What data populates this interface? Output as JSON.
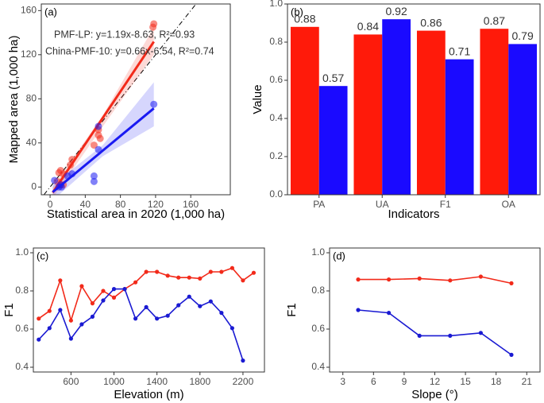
{
  "chart_data": [
    {
      "type": "scatter",
      "panel_label": "(a)",
      "x_label": "Statistical area in 2020 (1,000 ha)",
      "y_label": "Mapped area (1,000 ha)",
      "xlim": [
        -10,
        205
      ],
      "ylim": [
        -7,
        166
      ],
      "xticks": [
        0,
        40,
        80,
        120,
        160
      ],
      "yticks": [
        0,
        40,
        80,
        120,
        160
      ],
      "series": [
        {
          "name": "PMF-LP: y=1.19x-8.63, R²=0.93",
          "color": "#f22a1a",
          "x": [
            118,
            117,
            55,
            55,
            57,
            50,
            25,
            23,
            12,
            10,
            15,
            8,
            15,
            12
          ],
          "values": [
            148,
            145,
            52,
            47,
            44,
            38,
            25,
            20,
            15,
            13,
            12,
            5,
            2,
            2
          ],
          "fit": {
            "x": [
              3,
              118
            ],
            "values": [
              -5.06,
              131.8
            ]
          },
          "ci": {
            "x": [
              3,
              60,
              118
            ],
            "lower": [
              -10,
              55,
              120
            ],
            "upper": [
              0,
              65,
              145
            ]
          }
        },
        {
          "name": "China-PMF-10: y=0.66x-6.54, R²=0.74",
          "color": "#1a1af2",
          "x": [
            118,
            55,
            55,
            50,
            50,
            25,
            20,
            12,
            13,
            10,
            5
          ],
          "values": [
            75,
            55,
            34,
            10,
            5,
            12,
            10,
            2,
            0,
            0,
            6
          ],
          "fit": {
            "x": [
              3,
              118
            ],
            "values": [
              -4.56,
              71.34
            ]
          },
          "ci": {
            "x": [
              3,
              60,
              118
            ],
            "lower": [
              -12,
              28,
              55
            ],
            "upper": [
              2,
              38,
              95
            ]
          }
        }
      ]
    },
    {
      "type": "bar",
      "panel_label": "(b)",
      "x_label": "Indicators",
      "y_label": "Value",
      "categories": [
        "PA",
        "UA",
        "F1",
        "OA"
      ],
      "ylim": [
        0,
        1
      ],
      "yticks": [
        {
          "value": 0,
          "label": "0.0"
        },
        0.2,
        0.4,
        0.6,
        0.8,
        {
          "value": 1,
          "label": "1.0"
        }
      ],
      "series": [
        {
          "color": "#ff1a0a",
          "values": [
            0.88,
            0.84,
            0.86,
            0.87
          ]
        },
        {
          "color": "#1a0aff",
          "values": [
            0.57,
            0.92,
            0.71,
            0.79
          ]
        }
      ]
    },
    {
      "type": "line",
      "panel_label": "(c)",
      "x_label": "Elevation (m)",
      "y_label": "F1",
      "xlim": [
        250,
        2400
      ],
      "ylim": [
        0.375,
        1.025
      ],
      "xticks": [
        600,
        1000,
        1400,
        1800,
        2200
      ],
      "yticks": [
        0.4,
        0.6,
        0.8,
        {
          "value": 1,
          "label": "1.0"
        }
      ],
      "series": [
        {
          "color": "#f22a1a",
          "x": [
            300,
            400,
            500,
            600,
            700,
            800,
            900,
            1000,
            1100,
            1200,
            1300,
            1400,
            1500,
            1600,
            1700,
            1800,
            1900,
            2000,
            2100,
            2200,
            2300
          ],
          "values": [
            0.655,
            0.695,
            0.855,
            0.645,
            0.825,
            0.735,
            0.8,
            0.765,
            0.81,
            0.845,
            0.9,
            0.9,
            0.88,
            0.87,
            0.87,
            0.865,
            0.9,
            0.9,
            0.92,
            0.855,
            0.895
          ]
        },
        {
          "color": "#1a1ad2",
          "x": [
            300,
            400,
            500,
            600,
            700,
            800,
            900,
            1000,
            1100,
            1200,
            1300,
            1400,
            1500,
            1600,
            1700,
            1800,
            1900,
            2000,
            2100,
            2200
          ],
          "values": [
            0.545,
            0.605,
            0.7,
            0.55,
            0.625,
            0.665,
            0.75,
            0.81,
            0.81,
            0.655,
            0.715,
            0.655,
            0.67,
            0.725,
            0.77,
            0.72,
            0.745,
            0.685,
            0.605,
            0.435
          ]
        }
      ]
    },
    {
      "type": "line",
      "panel_label": "(d)",
      "x_label": "Slope (°)",
      "y_label": "F1",
      "xlim": [
        1.7,
        22.3
      ],
      "ylim": [
        0.375,
        1.025
      ],
      "xticks": [
        3,
        6,
        9,
        12,
        15,
        18,
        21
      ],
      "yticks": [
        0.4,
        0.6,
        0.8,
        {
          "value": 1,
          "label": "1.0"
        }
      ],
      "series": [
        {
          "color": "#f22a1a",
          "x": [
            4.5,
            7.5,
            10.5,
            13.5,
            16.5,
            19.5
          ],
          "values": [
            0.86,
            0.86,
            0.865,
            0.855,
            0.875,
            0.84
          ]
        },
        {
          "color": "#1a1ad2",
          "x": [
            4.5,
            7.5,
            10.5,
            13.5,
            16.5,
            19.5
          ],
          "values": [
            0.7,
            0.685,
            0.565,
            0.565,
            0.58,
            0.465
          ]
        }
      ]
    }
  ]
}
